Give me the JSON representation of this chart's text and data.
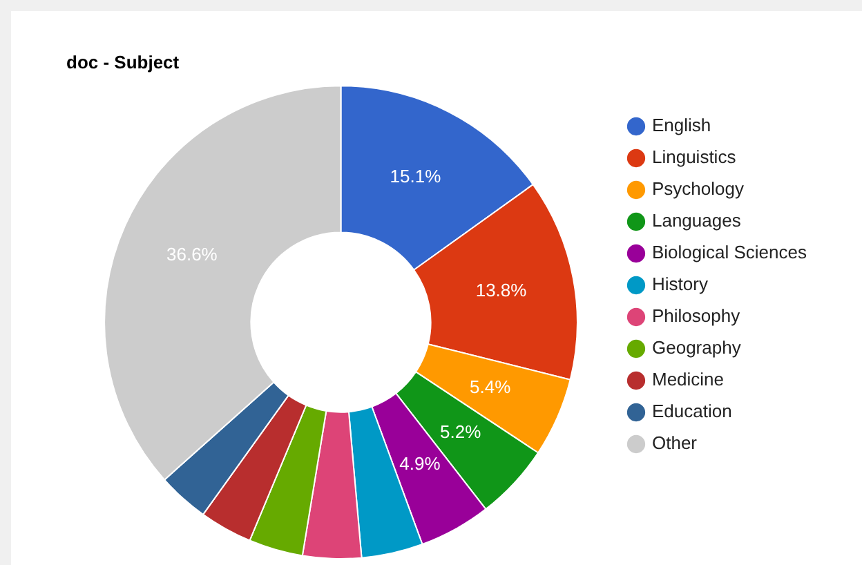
{
  "chart_data": {
    "type": "donut",
    "title": "doc - Subject",
    "categories": [
      "English",
      "Linguistics",
      "Psychology",
      "Languages",
      "Biological Sciences",
      "History",
      "Philosophy",
      "Geography",
      "Medicine",
      "Education",
      "Other"
    ],
    "values": [
      15.1,
      13.8,
      5.4,
      5.2,
      4.9,
      4.2,
      4.0,
      3.7,
      3.6,
      3.5,
      36.6
    ],
    "value_labels": [
      "15.1%",
      "13.8%",
      "5.4%",
      "5.2%",
      "4.9%",
      null,
      null,
      null,
      null,
      null,
      "36.6%"
    ],
    "colors": [
      "#3366cc",
      "#dc3912",
      "#ff9900",
      "#109618",
      "#990099",
      "#0099c6",
      "#dd4477",
      "#66aa00",
      "#b82e2e",
      "#316395",
      "#cccccc"
    ],
    "legend": "right"
  }
}
